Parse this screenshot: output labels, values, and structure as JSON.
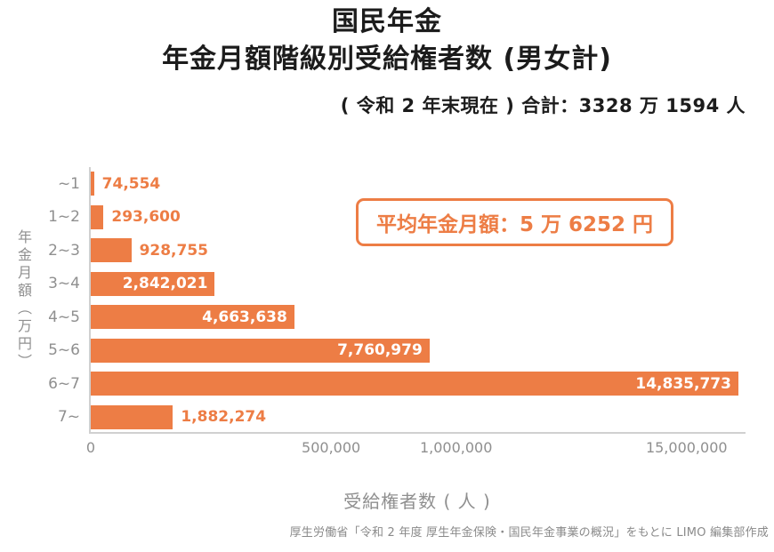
{
  "title": {
    "line1": "国民年金",
    "line2": "年金月額階級別受給権者数 (男女計)",
    "subtitle": "( 令和 2 年末現在 ) 合計：3328 万 1594 人"
  },
  "annotation": {
    "text": "平均年金月額：5 万 6252 円"
  },
  "axis": {
    "y_label": "年金月額（万円）",
    "x_label": "受給権者数 ( 人 )"
  },
  "footer": {
    "text": "厚生労働省「令和 2 年度 厚生年金保険・国民年金事業の概況」をもとに LIMO 編集部作成"
  },
  "colors": {
    "bar": "#ED7D45",
    "title_text": "#1c1c1c",
    "muted_text": "#8f8f8f",
    "axis_line": "#d0d0d0"
  },
  "chart_data": {
    "type": "bar",
    "orientation": "horizontal",
    "title": "国民年金 年金月額階級別受給権者数 (男女計)",
    "subtitle": "(令和2年末現在) 合計：3328万1594人",
    "xlabel": "受給権者数(人)",
    "ylabel": "年金月額(万円)",
    "categories": [
      "~1",
      "1~2",
      "2~3",
      "3~4",
      "4~5",
      "5~6",
      "6~7",
      "7~"
    ],
    "values": [
      74554,
      293600,
      928755,
      2842021,
      4663638,
      7760979,
      14835773,
      1882274
    ],
    "value_labels": [
      "74,554",
      "293,600",
      "928,755",
      "2,842,021",
      "4,663,638",
      "7,760,979",
      "14,835,773",
      "1,882,274"
    ],
    "xlim": [
      0,
      15000000
    ],
    "x_ticks": [
      {
        "label": "0",
        "pos": 0
      },
      {
        "label": "500,000",
        "pos": 0.367
      },
      {
        "label": "1,000,000",
        "pos": 0.558
      },
      {
        "label": "15,000,000",
        "pos": 0.91
      }
    ],
    "grid": false,
    "legend": "none",
    "annotation": "平均年金月額：5万6252円",
    "total": "合計：3328万1594人"
  }
}
